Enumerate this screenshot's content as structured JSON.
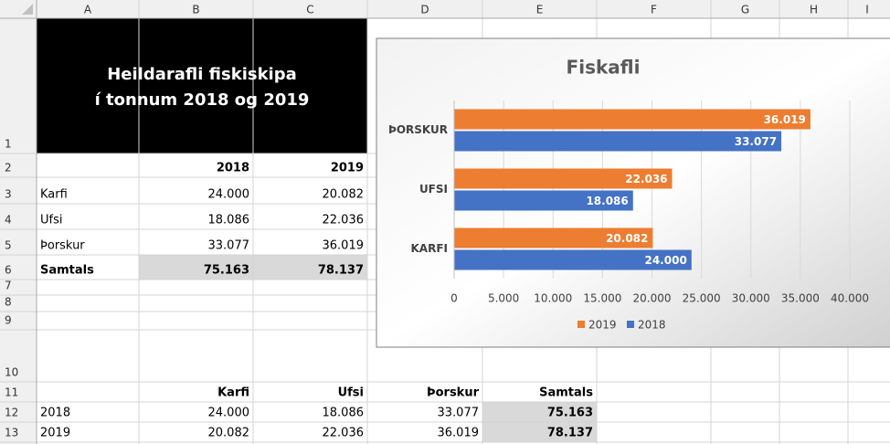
{
  "spreadsheet": {
    "columns": [
      "A",
      "B",
      "C",
      "D",
      "E",
      "F",
      "G",
      "H",
      "I"
    ],
    "row_numbers": [
      1,
      2,
      3,
      4,
      5,
      6,
      7,
      8,
      9,
      10,
      11,
      12,
      13
    ],
    "title_lines": [
      "Heildarafli fiskiskipa",
      "í tonnum 2018 og 2019"
    ],
    "cells": {
      "B2": "2018",
      "C2": "2019",
      "A3": "Karfi",
      "B3": "24.000",
      "C3": "20.082",
      "A4": "Ufsi",
      "B4": "18.086",
      "C4": "22.036",
      "A5": "Þorskur",
      "B5": "33.077",
      "C5": "36.019",
      "A6": "Samtals",
      "B6": "75.163",
      "C6": "78.137",
      "B11": "Karfi",
      "C11": "Ufsi",
      "D11": "Þorskur",
      "E11": "Samtals",
      "A12": "2018",
      "B12": "24.000",
      "C12": "18.086",
      "D12": "33.077",
      "E12": "75.163",
      "A13": "2019",
      "B13": "20.082",
      "C13": "22.036",
      "D13": "36.019",
      "E13": "78.137"
    }
  },
  "chart_data": {
    "type": "barh",
    "title": "Fiskafli",
    "categories": [
      "ÞORSKUR",
      "UFSI",
      "KARFI"
    ],
    "series": [
      {
        "name": "2019",
        "color": "#ed7d31",
        "values": [
          36019,
          22036,
          20082
        ],
        "value_labels": [
          "36.019",
          "22.036",
          "20.082"
        ]
      },
      {
        "name": "2018",
        "color": "#4472c4",
        "values": [
          33077,
          18086,
          24000
        ],
        "value_labels": [
          "33.077",
          "18.086",
          "24.000"
        ]
      }
    ],
    "xlim": [
      0,
      40000
    ],
    "xticks": [
      0,
      {
        "value": 5000,
        "label": "5.000"
      },
      {
        "value": 10000,
        "label": "10.000"
      },
      {
        "value": 15000,
        "label": "15.000"
      },
      {
        "value": 20000,
        "label": "20.000"
      },
      {
        "value": 25000,
        "label": "25.000"
      },
      {
        "value": 30000,
        "label": "30.000"
      },
      {
        "value": 35000,
        "label": "35.000"
      },
      {
        "value": 40000,
        "label": "40.000"
      }
    ],
    "grid": true,
    "legend": "bottom"
  }
}
